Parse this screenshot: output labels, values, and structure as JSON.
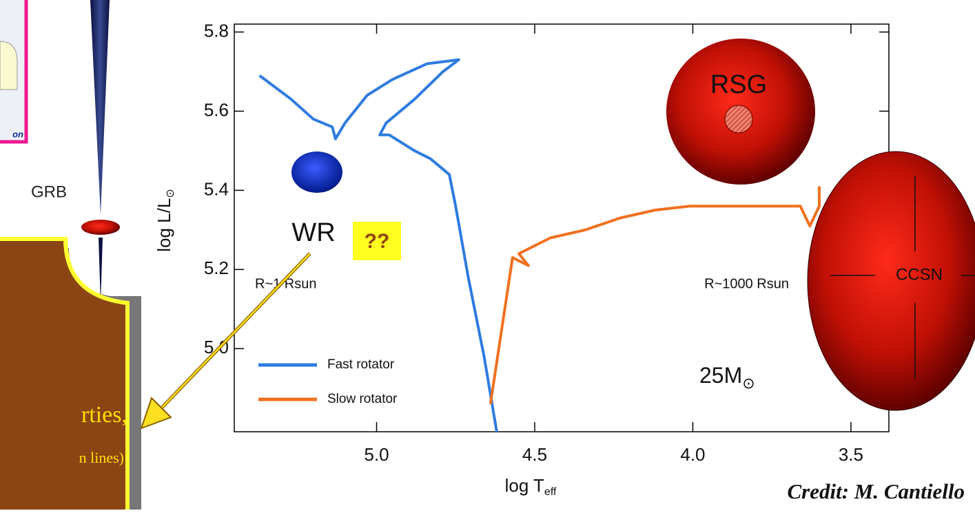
{
  "chart_data": {
    "type": "line",
    "xlabel": {
      "text": "log T",
      "sub": "eff"
    },
    "ylabel": {
      "text": "log L/L",
      "sub": "⊙"
    },
    "xlim": [
      5.45,
      3.38
    ],
    "ylim": [
      4.79,
      5.82
    ],
    "xticks": [
      {
        "value": 5.0,
        "label": "5.0"
      },
      4.5,
      {
        "value": 4.0,
        "label": "4.0"
      },
      3.5
    ],
    "yticks": [
      5.8,
      5.6,
      5.4,
      5.2,
      {
        "value": 5.0,
        "label": "5.0"
      }
    ],
    "legend": "lower left",
    "series": [
      {
        "name": "Fast rotator",
        "color": "#2f7be0",
        "x": [
          5.37,
          5.27,
          5.2,
          5.14,
          5.13,
          5.1,
          5.03,
          4.95,
          4.84,
          4.74,
          4.79,
          4.88,
          4.97,
          4.99,
          4.96,
          4.88,
          4.83,
          4.77,
          4.75,
          4.71,
          4.66,
          4.62
        ],
        "values": [
          5.69,
          5.63,
          5.58,
          5.56,
          5.53,
          5.57,
          5.64,
          5.68,
          5.72,
          5.73,
          5.7,
          5.63,
          5.57,
          5.54,
          5.54,
          5.5,
          5.48,
          5.44,
          5.36,
          5.18,
          4.98,
          4.79
        ]
      },
      {
        "name": "Slow rotator",
        "color": "#f07020",
        "x": [
          4.64,
          4.57,
          4.52,
          4.55,
          4.45,
          4.34,
          4.23,
          4.12,
          4.01,
          3.79,
          3.66,
          3.63,
          3.6,
          3.6
        ],
        "values": [
          4.86,
          5.23,
          5.21,
          5.24,
          5.28,
          5.3,
          5.33,
          5.35,
          5.36,
          5.36,
          5.36,
          5.31,
          5.36,
          5.41
        ]
      }
    ],
    "annotations": {
      "wr": "WR",
      "rsg": "RSG",
      "ccsn": "CCSN",
      "r_small": "R~1 Rsun",
      "r_large": "R~1000 Rsun",
      "mass": {
        "text": "25M",
        "sub": "⊙"
      }
    }
  },
  "slide": {
    "question": "??",
    "grb": "GRB",
    "corner_text": "on",
    "box_line1": "rties,",
    "box_line2": "n lines)",
    "credit": "Credit: M. Cantiello"
  }
}
